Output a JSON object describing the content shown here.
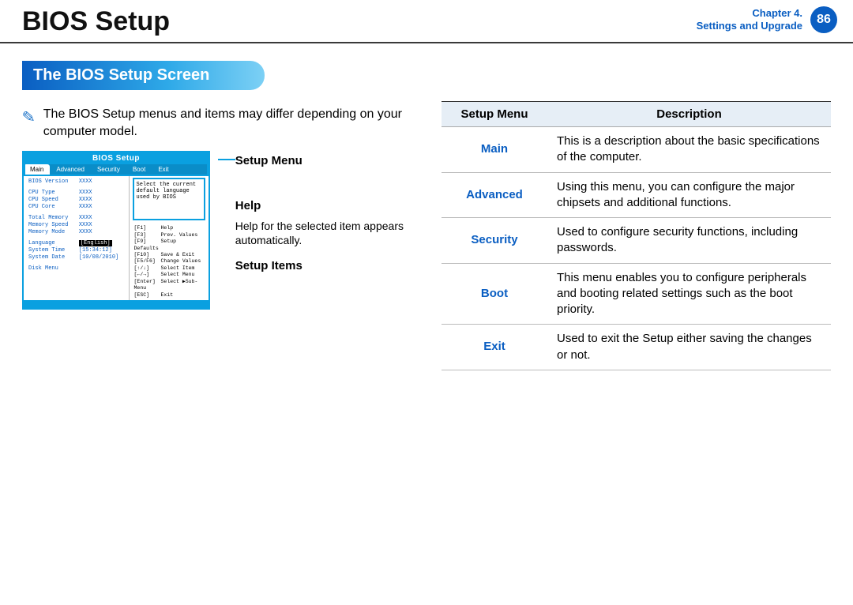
{
  "header": {
    "title": "BIOS Setup",
    "chapter_line1": "Chapter 4.",
    "chapter_line2": "Settings and Upgrade",
    "page_number": "86"
  },
  "section_title": "The BIOS Setup Screen",
  "note_text": "The BIOS Setup menus and items may differ depending on your computer model.",
  "bios": {
    "window_title": "BIOS Setup",
    "tabs": [
      "Main",
      "Advanced",
      "Security",
      "Boot",
      "Exit"
    ],
    "active_tab": "Main",
    "rows": [
      [
        "BIOS Version",
        "XXXX"
      ],
      [
        "",
        ""
      ],
      [
        "CPU Type",
        "XXXX"
      ],
      [
        "CPU Speed",
        "XXXX"
      ],
      [
        "CPU Core",
        "XXXX"
      ],
      [
        "",
        ""
      ],
      [
        "Total Memory",
        "XXXX"
      ],
      [
        "Memory Speed",
        "XXXX"
      ],
      [
        "Memory Mode",
        "XXXX"
      ],
      [
        "",
        ""
      ],
      [
        "Language",
        "[English]"
      ],
      [
        "System Time",
        "[15:34:12]"
      ],
      [
        "System Date",
        "[10/08/2010]"
      ],
      [
        "",
        ""
      ],
      [
        "Disk Menu",
        ""
      ]
    ],
    "help_text": "Select the current default language used by BIOS",
    "keys": [
      [
        "[F1]",
        "Help"
      ],
      [
        "[F3]",
        "Prev. Values"
      ],
      [
        "[F9]",
        "Setup Defaults"
      ],
      [
        "[F10]",
        "Save & Exit"
      ],
      [
        "[F5/F6]",
        "Change Values"
      ],
      [
        "[↑/↓]",
        "Select Item"
      ],
      [
        "[←/→]",
        "Select Menu"
      ],
      [
        "[Enter]",
        "Select ▶Sub-Menu"
      ],
      [
        "[ESC]",
        "Exit"
      ]
    ]
  },
  "annotations": {
    "setup_menu": "Setup Menu",
    "help_title": "Help",
    "help_body": "Help for the selected item appears automatically.",
    "setup_items": "Setup Items"
  },
  "table": {
    "head_menu": "Setup Menu",
    "head_desc": "Description",
    "rows": [
      {
        "menu": "Main",
        "desc": "This is a description about the basic specifications of the computer."
      },
      {
        "menu": "Advanced",
        "desc": "Using this menu, you can configure the major chipsets and additional functions."
      },
      {
        "menu": "Security",
        "desc": "Used to configure security functions, including passwords."
      },
      {
        "menu": "Boot",
        "desc": "This menu enables you to configure peripherals and booting related settings such as the boot priority."
      },
      {
        "menu": "Exit",
        "desc": "Used to exit the Setup either saving the changes or not."
      }
    ]
  }
}
